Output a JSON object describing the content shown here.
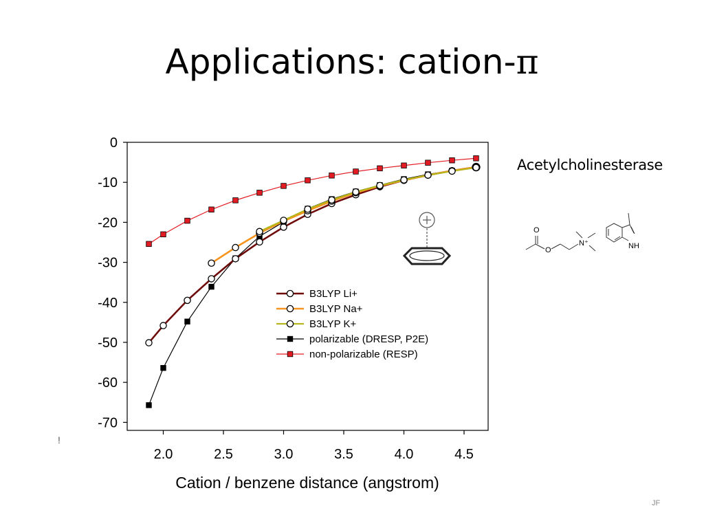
{
  "slide": {
    "title_prefix": "Applications: cation-",
    "title_symbol": "π",
    "side_label": "Acetylcholinesterase",
    "footer": "JF",
    "stray_mark": "!"
  },
  "molecule": {
    "atoms": {
      "O_carbonyl": "O",
      "O_ester": "O",
      "N_plus": "N⁺",
      "NH": "NH"
    }
  },
  "chart_data": {
    "type": "line",
    "xlabel": "Cation / benzene distance (angstrom)",
    "ylabel": "",
    "xlim": [
      1.7,
      4.7
    ],
    "ylim": [
      -72,
      0
    ],
    "xticks": [
      "2.0",
      "2.5",
      "3.0",
      "3.5",
      "4.0",
      "4.5"
    ],
    "yticks": [
      "0",
      "-10",
      "-20",
      "-30",
      "-40",
      "-50",
      "-60",
      "-70"
    ],
    "legend_position": "center",
    "series": [
      {
        "name": "B3LYP Li+",
        "color": "#6e0a0a",
        "marker": "circle-open",
        "x": [
          1.88,
          2.0,
          2.2,
          2.4,
          2.6,
          2.8,
          3.0,
          3.2,
          3.4,
          3.6,
          3.8,
          4.0,
          4.2,
          4.4,
          4.6
        ],
        "y": [
          -50.1,
          -45.8,
          -39.5,
          -34.1,
          -29.1,
          -24.9,
          -21.2,
          -18.0,
          -15.3,
          -13.1,
          -11.1,
          -9.5,
          -8.2,
          -7.1,
          -6.2
        ]
      },
      {
        "name": "B3LYP Na+",
        "color": "#f7941d",
        "marker": "circle-open",
        "x": [
          2.4,
          2.6,
          2.8,
          3.0,
          3.2,
          3.4,
          3.6,
          3.8,
          4.0,
          4.2,
          4.4,
          4.6
        ],
        "y": [
          -30.2,
          -26.3,
          -22.7,
          -19.7,
          -17.1,
          -14.7,
          -12.6,
          -10.9,
          -9.5,
          -8.2,
          -7.1,
          -6.2
        ]
      },
      {
        "name": "B3LYP K+",
        "color": "#b5b51c",
        "marker": "circle-open",
        "x": [
          2.8,
          3.0,
          3.2,
          3.4,
          3.6,
          3.8,
          4.0,
          4.2,
          4.4,
          4.6
        ],
        "y": [
          -22.3,
          -19.5,
          -16.7,
          -14.4,
          -12.4,
          -10.8,
          -9.4,
          -8.2,
          -7.2,
          -6.3
        ]
      },
      {
        "name": "polarizable (DRESP, P2E)",
        "color": "#000000",
        "marker": "square-filled",
        "x": [
          1.88,
          2.0,
          2.2,
          2.4,
          2.6,
          2.8,
          3.0,
          3.2,
          3.4,
          3.6,
          3.8,
          4.0,
          4.2,
          4.4,
          4.6
        ],
        "y": [
          -65.7,
          -56.4,
          -44.8,
          -36.1,
          -29.0,
          -23.5,
          -19.9,
          -16.6,
          -14.2,
          -12.3,
          -10.7,
          -9.2,
          -8.0,
          -7.1,
          -6.3
        ]
      },
      {
        "name": "non-polarizable (RESP)",
        "color": "#e31b23",
        "marker": "square-filled",
        "x": [
          1.88,
          2.0,
          2.2,
          2.4,
          2.6,
          2.8,
          3.0,
          3.2,
          3.4,
          3.6,
          3.8,
          4.0,
          4.2,
          4.4,
          4.6
        ],
        "y": [
          -25.4,
          -23.0,
          -19.6,
          -16.8,
          -14.5,
          -12.6,
          -10.9,
          -9.5,
          -8.3,
          -7.3,
          -6.5,
          -5.8,
          -5.1,
          -4.5,
          -4.0
        ]
      }
    ]
  }
}
